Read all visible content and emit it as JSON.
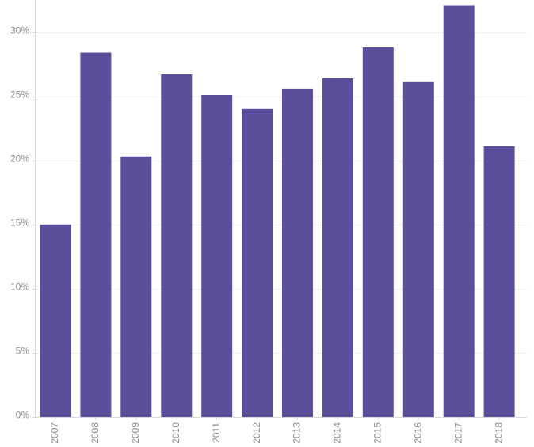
{
  "chart_data": {
    "type": "bar",
    "categories": [
      "2007",
      "2008",
      "2009",
      "2010",
      "2011",
      "2012",
      "2013",
      "2014",
      "2015",
      "2016",
      "2017",
      "2018"
    ],
    "values": [
      15.0,
      28.4,
      20.3,
      26.7,
      25.1,
      24.0,
      25.6,
      26.4,
      28.8,
      26.1,
      32.1,
      21.1
    ],
    "ylim": [
      0,
      32.5
    ],
    "yticks": [
      0,
      5,
      10,
      15,
      20,
      25,
      30
    ],
    "ytick_labels": [
      "0%",
      "5%",
      "10%",
      "15%",
      "20%",
      "25%",
      "30%"
    ],
    "bar_color": "#5b4f9b",
    "grid": true,
    "title": "",
    "xlabel": "",
    "ylabel": ""
  }
}
